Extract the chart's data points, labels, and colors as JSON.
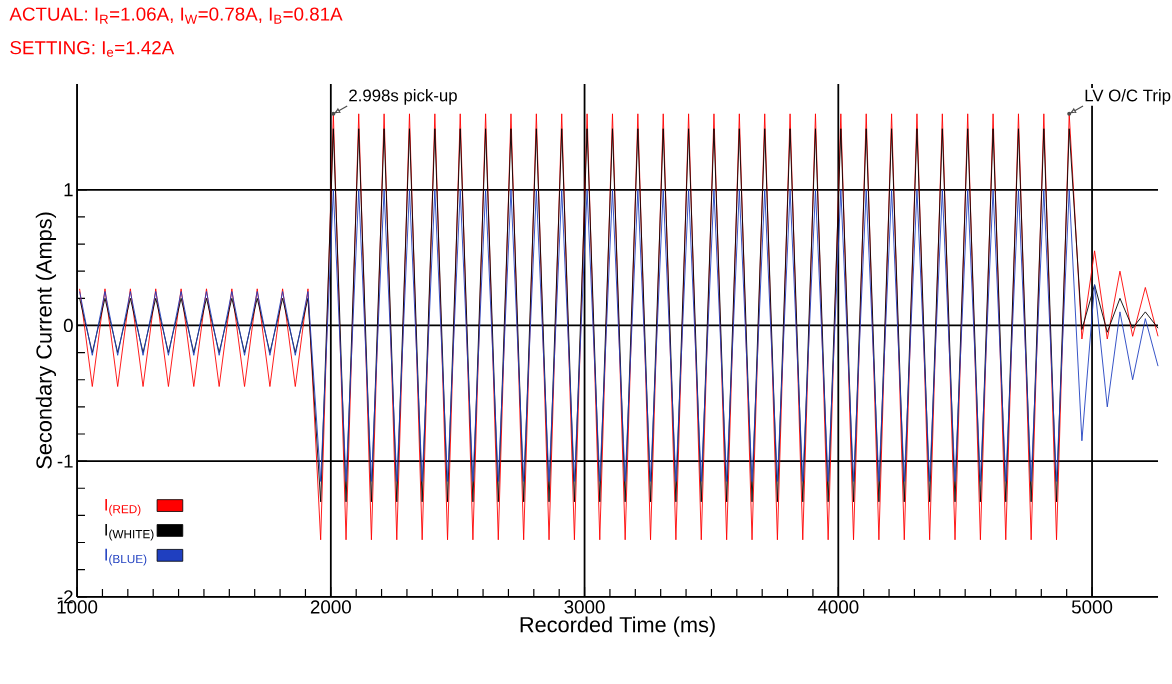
{
  "chart_data": {
    "type": "line",
    "xlabel": "Recorded Time (ms)",
    "ylabel": "Secondary Current (Amps)",
    "xlim": [
      1000,
      5260
    ],
    "ylim": [
      -2,
      1.78
    ],
    "xticks": [
      1000,
      2000,
      3000,
      4000,
      5000
    ],
    "yticks": [
      -2,
      -1,
      0,
      1
    ],
    "grid": true,
    "legend": "bottom left",
    "marker": "none",
    "line_style": "solid",
    "x": [
      1010,
      1060,
      1110,
      1160,
      1210,
      1260,
      1310,
      1360,
      1410,
      1460,
      1510,
      1560,
      1610,
      1660,
      1710,
      1760,
      1810,
      1860,
      1910,
      1960,
      2010,
      2060,
      2110,
      2160,
      2210,
      2260,
      2310,
      2360,
      2410,
      2460,
      2510,
      2560,
      2610,
      2660,
      2710,
      2760,
      2810,
      2860,
      2910,
      2960,
      3010,
      3060,
      3110,
      3160,
      3210,
      3260,
      3310,
      3360,
      3410,
      3460,
      3510,
      3560,
      3610,
      3660,
      3710,
      3760,
      3810,
      3860,
      3910,
      3960,
      4010,
      4060,
      4110,
      4160,
      4210,
      4260,
      4310,
      4360,
      4410,
      4460,
      4510,
      4560,
      4610,
      4660,
      4710,
      4760,
      4810,
      4860,
      4910,
      4960,
      5010,
      5060,
      5110,
      5160,
      5210,
      5260
    ],
    "series": [
      {
        "name": "I$_{(RED)}$",
        "color": "#ff0000",
        "values": [
          0.27,
          -0.45,
          0.27,
          -0.45,
          0.27,
          -0.45,
          0.27,
          -0.45,
          0.27,
          -0.45,
          0.27,
          -0.45,
          0.27,
          -0.45,
          0.27,
          -0.45,
          0.27,
          -0.45,
          0.27,
          -1.58,
          1.56,
          -1.58,
          1.56,
          -1.58,
          1.56,
          -1.58,
          1.56,
          -1.58,
          1.56,
          -1.58,
          1.56,
          -1.58,
          1.56,
          -1.58,
          1.56,
          -1.58,
          1.56,
          -1.58,
          1.56,
          -1.58,
          1.56,
          -1.58,
          1.56,
          -1.58,
          1.56,
          -1.58,
          1.56,
          -1.58,
          1.56,
          -1.58,
          1.56,
          -1.58,
          1.56,
          -1.58,
          1.56,
          -1.58,
          1.56,
          -1.58,
          1.56,
          -1.58,
          1.56,
          -1.58,
          1.56,
          -1.58,
          1.56,
          -1.58,
          1.56,
          -1.58,
          1.56,
          -1.58,
          1.56,
          -1.58,
          1.56,
          -1.58,
          1.56,
          -1.58,
          1.56,
          -1.58,
          1.56,
          -0.1,
          0.55,
          -0.1,
          0.4,
          -0.08,
          0.28,
          -0.08
        ]
      },
      {
        "name": "I$_{(WHITE)}$",
        "color": "#000000",
        "values": [
          0.2,
          -0.2,
          0.2,
          -0.2,
          0.2,
          -0.2,
          0.2,
          -0.2,
          0.2,
          -0.2,
          0.2,
          -0.2,
          0.2,
          -0.2,
          0.2,
          -0.2,
          0.2,
          -0.2,
          0.2,
          -1.3,
          1.45,
          -1.3,
          1.45,
          -1.3,
          1.45,
          -1.3,
          1.45,
          -1.3,
          1.45,
          -1.3,
          1.45,
          -1.3,
          1.45,
          -1.3,
          1.45,
          -1.3,
          1.45,
          -1.3,
          1.45,
          -1.3,
          1.45,
          -1.3,
          1.45,
          -1.3,
          1.45,
          -1.3,
          1.45,
          -1.3,
          1.45,
          -1.3,
          1.45,
          -1.3,
          1.45,
          -1.3,
          1.45,
          -1.3,
          1.45,
          -1.3,
          1.45,
          -1.3,
          1.45,
          -1.3,
          1.45,
          -1.3,
          1.45,
          -1.3,
          1.45,
          -1.3,
          1.45,
          -1.3,
          1.45,
          -1.3,
          1.45,
          -1.3,
          1.45,
          -1.3,
          1.45,
          -1.3,
          1.45,
          -0.03,
          0.3,
          -0.05,
          0.2,
          -0.02,
          0.1,
          -0.02
        ]
      },
      {
        "name": "I$_{(BLUE)}$",
        "color": "#1f3fc0",
        "values": [
          0.25,
          -0.22,
          0.25,
          -0.22,
          0.25,
          -0.22,
          0.25,
          -0.22,
          0.25,
          -0.22,
          0.25,
          -0.22,
          0.25,
          -0.22,
          0.25,
          -0.22,
          0.25,
          -0.22,
          0.25,
          -1.15,
          1.0,
          -1.15,
          1.0,
          -1.15,
          1.0,
          -1.15,
          1.0,
          -1.15,
          1.0,
          -1.15,
          1.0,
          -1.15,
          1.0,
          -1.15,
          1.0,
          -1.15,
          1.0,
          -1.15,
          1.0,
          -1.15,
          1.0,
          -1.15,
          1.0,
          -1.15,
          1.0,
          -1.15,
          1.0,
          -1.15,
          1.0,
          -1.15,
          1.0,
          -1.15,
          1.0,
          -1.15,
          1.0,
          -1.15,
          1.0,
          -1.15,
          1.0,
          -1.15,
          1.0,
          -1.15,
          1.0,
          -1.15,
          1.0,
          -1.15,
          1.0,
          -1.15,
          1.0,
          -1.15,
          1.0,
          -1.15,
          1.0,
          -1.15,
          1.0,
          -1.15,
          1.0,
          -1.15,
          1.0,
          -0.85,
          0.3,
          -0.6,
          0.1,
          -0.4,
          0.05,
          -0.3
        ]
      }
    ],
    "annotations": [
      "ACTUAL: I$_{R}$=1.06A, I$_{W}$=0.78A, I$_{B}$=0.81A",
      "SETTING: I$_{e}$=1.42A",
      {
        "text": "2.998s pick-up",
        "x": 2010,
        "y": 1.56
      },
      {
        "text": "LV O/C Trip",
        "x": 4910,
        "y": 1.56
      }
    ]
  }
}
